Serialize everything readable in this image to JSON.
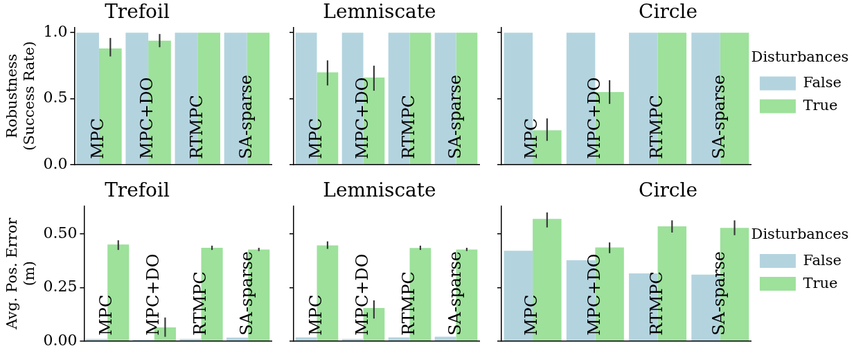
{
  "chart_data": [
    {
      "type": "bar",
      "title": "Trefoil",
      "ylabel": "Robustness\n(Success Rate)",
      "categories": [
        "MPC",
        "MPC+DO",
        "RTMPC",
        "SA-sparse"
      ],
      "series": [
        {
          "color": "#b3d4df",
          "values": [
            1.0,
            1.0,
            1.0,
            1.0
          ]
        },
        {
          "color": "#9de19b",
          "values": [
            0.88,
            0.94,
            1.0,
            1.0
          ],
          "errors": [
            [
              0.82,
              0.96
            ],
            [
              0.89,
              0.99
            ],
            null,
            null
          ]
        }
      ],
      "ylim": [
        0,
        1.04
      ],
      "yticks": [
        {
          "value": 0,
          "label": "0.0"
        },
        {
          "value": 0.5,
          "label": "0.5"
        },
        {
          "value": 1,
          "label": "1.0"
        }
      ],
      "legend": false
    },
    {
      "type": "bar",
      "title": "Lemniscate",
      "categories": [
        "MPC",
        "MPC+DO",
        "RTMPC",
        "SA-sparse"
      ],
      "series": [
        {
          "color": "#b3d4df",
          "values": [
            1.0,
            1.0,
            1.0,
            1.0
          ]
        },
        {
          "color": "#9de19b",
          "values": [
            0.7,
            0.66,
            1.0,
            1.0
          ],
          "errors": [
            [
              0.6,
              0.79
            ],
            [
              0.56,
              0.75
            ],
            null,
            null
          ]
        }
      ],
      "ylim": [
        0,
        1.04
      ],
      "yticks": [
        0,
        0.5,
        1
      ],
      "tick_labels": "x",
      "legend": false
    },
    {
      "type": "bar",
      "title": "Circle",
      "legend_title": "Disturbances",
      "categories": [
        "MPC",
        "MPC+DO",
        "RTMPC",
        "SA-sparse"
      ],
      "series": [
        {
          "name": "False",
          "color": "#b3d4df",
          "values": [
            1.0,
            1.0,
            1.0,
            1.0
          ]
        },
        {
          "name": "True",
          "color": "#9de19b",
          "values": [
            0.26,
            0.55,
            1.0,
            1.0
          ],
          "errors": [
            [
              0.18,
              0.35
            ],
            [
              0.46,
              0.64
            ],
            null,
            null
          ]
        }
      ],
      "ylim": [
        0,
        1.04
      ],
      "yticks": [
        0,
        0.5,
        1
      ],
      "tick_labels": "x",
      "legend": "right"
    },
    {
      "type": "bar",
      "title": "Trefoil",
      "ylabel": "Avg. Pos. Error\n(m)",
      "categories": [
        "MPC",
        "MPC+DO",
        "RTMPC",
        "SA-sparse"
      ],
      "series": [
        {
          "color": "#b3d4df",
          "values": [
            0.01,
            0.006,
            0.01,
            0.016
          ]
        },
        {
          "color": "#9de19b",
          "values": [
            0.45,
            0.064,
            0.435,
            0.427
          ],
          "errors": [
            [
              0.425,
              0.47
            ],
            [
              0.02,
              0.11
            ],
            [
              0.425,
              0.445
            ],
            [
              0.42,
              0.435
            ]
          ]
        }
      ],
      "ylim": [
        0,
        0.63
      ],
      "yticks": [
        {
          "value": 0,
          "label": "0.00"
        },
        {
          "value": 0.25,
          "label": "0.25"
        },
        {
          "value": 0.5,
          "label": "0.50"
        }
      ],
      "legend": false
    },
    {
      "type": "bar",
      "title": "Lemniscate",
      "categories": [
        "MPC",
        "MPC+DO",
        "RTMPC",
        "SA-sparse"
      ],
      "series": [
        {
          "color": "#b3d4df",
          "values": [
            0.017,
            0.01,
            0.017,
            0.02
          ]
        },
        {
          "color": "#9de19b",
          "values": [
            0.446,
            0.154,
            0.434,
            0.427
          ],
          "errors": [
            [
              0.43,
              0.465
            ],
            [
              0.105,
              0.19
            ],
            [
              0.425,
              0.445
            ],
            [
              0.42,
              0.435
            ]
          ]
        }
      ],
      "ylim": [
        0,
        0.63
      ],
      "yticks": [
        0,
        0.25,
        0.5
      ],
      "tick_labels": "x",
      "legend": false
    },
    {
      "type": "bar",
      "title": "Circle",
      "legend_title": "Disturbances",
      "categories": [
        "MPC",
        "MPC+DO",
        "RTMPC",
        "SA-sparse"
      ],
      "series": [
        {
          "name": "False",
          "color": "#b3d4df",
          "values": [
            0.421,
            0.377,
            0.316,
            0.31
          ]
        },
        {
          "name": "True",
          "color": "#9de19b",
          "values": [
            0.57,
            0.437,
            0.535,
            0.528
          ],
          "errors": [
            [
              0.53,
              0.6
            ],
            [
              0.41,
              0.46
            ],
            [
              0.506,
              0.563
            ],
            [
              0.494,
              0.563
            ]
          ]
        }
      ],
      "ylim": [
        0,
        0.63
      ],
      "yticks": [
        0,
        0.25,
        0.5
      ],
      "tick_labels": "x",
      "legend": "right"
    }
  ]
}
